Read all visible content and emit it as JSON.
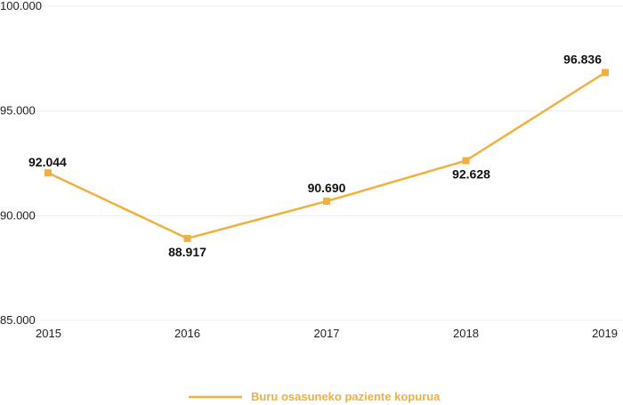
{
  "chart_data": {
    "type": "line",
    "categories": [
      "2015",
      "2016",
      "2017",
      "2018",
      "2019"
    ],
    "series": [
      {
        "name": "Buru osasuneko paziente kopurua",
        "values": [
          92044,
          88917,
          90690,
          92628,
          96836
        ],
        "labels": [
          "92.044",
          "88.917",
          "90.690",
          "92.628",
          "96.836"
        ],
        "color": "#F0B040"
      }
    ],
    "ylim": [
      85000,
      100000
    ],
    "yticks": [
      85000,
      90000,
      95000,
      100000
    ],
    "ytick_labels": [
      "85.000",
      "90.000",
      "95.000",
      "100.000"
    ],
    "grid": true,
    "legend_position": "bottom-center"
  }
}
